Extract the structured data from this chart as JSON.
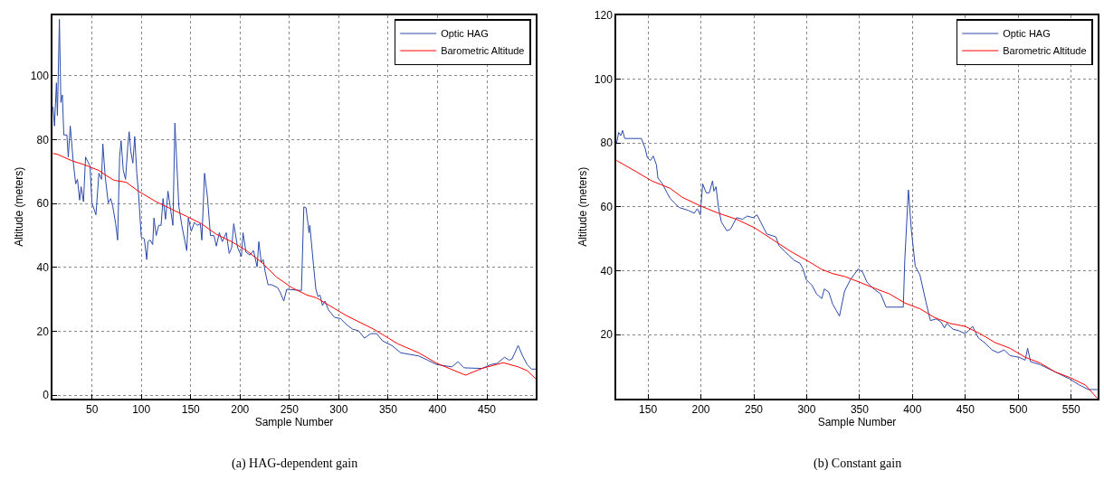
{
  "chart_data": [
    {
      "type": "line",
      "title": "(a) HAG-dependent gain",
      "xlabel": "Sample Number",
      "ylabel": "Altitude (meters)",
      "xlim": [
        10,
        499.5
      ],
      "xticks": [
        50,
        100,
        150,
        200,
        250,
        300,
        350,
        400,
        450
      ],
      "ylim": [
        -1,
        119
      ],
      "yticks": [
        0,
        20,
        40,
        60,
        80,
        100
      ],
      "grid": true,
      "legend": "top right",
      "line_style": "solid",
      "series": [
        {
          "name": "Optic HAG",
          "color": "#2b4aa8",
          "x": [
            10.6,
            12,
            14,
            15,
            17,
            18.5,
            20,
            21.5,
            24.6,
            26,
            28,
            31,
            33.5,
            35.3,
            37.5,
            39,
            41.4,
            43.5,
            45.7,
            48,
            50,
            54,
            57,
            59.7,
            61,
            63.4,
            66.5,
            69,
            71,
            74,
            76,
            78,
            79.5,
            81.7,
            84,
            86.2,
            87.7,
            89.3,
            91.4,
            93.3,
            95.4,
            97,
            100,
            103,
            105.5,
            106.7,
            109,
            111.5,
            112.8,
            115,
            117.6,
            120,
            122,
            124.5,
            127,
            130,
            132,
            134,
            138,
            141,
            146,
            147.6,
            150.6,
            153.7,
            156.7,
            159.8,
            161.3,
            164,
            167,
            170,
            173.6,
            176,
            179,
            182,
            186,
            189,
            191.5,
            193.6,
            197.6,
            201.4,
            203,
            206,
            210,
            213.6,
            217.3,
            219,
            221.5,
            223.5,
            225.4,
            228.4,
            232,
            238,
            240.6,
            244.3,
            247.3,
            262.2,
            264.6,
            266.8,
            269,
            269.8,
            270.7,
            274.4,
            276.8,
            279,
            281,
            283.5,
            286,
            289.6,
            295.7,
            301.8,
            308,
            314,
            320,
            326,
            332.3,
            338.4,
            344.5,
            353.7,
            362.8,
            372,
            381,
            390,
            399.4,
            414.6,
            420.7,
            426.8,
            445,
            454,
            460.4,
            468,
            472.6,
            475.6,
            481.7,
            486.3,
            490.9,
            495.4,
            499.4
          ],
          "values": [
            90.3,
            84.3,
            97.8,
            87.6,
            117.7,
            91.7,
            94,
            81.5,
            81.5,
            74.6,
            84.3,
            73.2,
            66.2,
            67.6,
            61.1,
            65.3,
            60.6,
            74.6,
            73.2,
            71.8,
            60.2,
            56.5,
            69.5,
            67.6,
            78.7,
            68.5,
            60.2,
            61.6,
            59.2,
            53.7,
            48.6,
            74.6,
            79.7,
            70.4,
            67.6,
            77.8,
            82.5,
            76.4,
            72.7,
            81,
            69.5,
            63.9,
            49.5,
            49,
            42.5,
            48.1,
            48.6,
            47.2,
            55.5,
            50,
            53.2,
            53.2,
            61.6,
            55.1,
            63.9,
            57.4,
            53.2,
            85.2,
            59.2,
            53.2,
            45.3,
            55.5,
            51.3,
            54.1,
            53.2,
            53.7,
            48.6,
            69.5,
            62,
            50,
            50,
            46.7,
            50.9,
            48.1,
            50.9,
            44.4,
            46.2,
            53.7,
            46.2,
            43.5,
            50.9,
            44.8,
            43.9,
            45.3,
            40.2,
            48.1,
            41.6,
            42.5,
            38.8,
            34.6,
            34.6,
            33.7,
            32.3,
            29.5,
            33.2,
            32.8,
            59,
            58.7,
            53.2,
            50.9,
            53.2,
            40.7,
            33.2,
            30.9,
            31.4,
            28.1,
            29.5,
            26.7,
            24.4,
            24,
            22.1,
            20.7,
            20.2,
            17.9,
            19.3,
            19.3,
            17,
            15.6,
            13.3,
            12.8,
            12.3,
            11,
            9.6,
            8.9,
            10.5,
            8.6,
            8.4,
            9.6,
            10,
            11.9,
            11,
            11.4,
            15.6,
            12.3,
            9.6,
            8.2,
            8.2
          ]
        },
        {
          "name": "Barometric Altitude",
          "color": "#ff0000",
          "x": [
            10.6,
            14.6,
            29.8,
            42,
            57,
            63.4,
            72.5,
            84.7,
            97,
            115,
            130.4,
            146,
            161,
            176,
            191.4,
            206.6,
            222,
            237,
            252.4,
            267.6,
            277.4,
            308,
            335.4,
            359.8,
            381,
            399.4,
            428.4,
            445,
            466.5,
            481.7,
            490.9,
            499.4
          ],
          "values": [
            75.7,
            75.5,
            73.4,
            72.2,
            70.4,
            69,
            67.3,
            66.7,
            63.9,
            60.6,
            58.3,
            56,
            53.7,
            50.4,
            48.1,
            45.3,
            41.6,
            37,
            33.7,
            31.4,
            30.5,
            24.9,
            20.7,
            16.1,
            13.3,
            10,
            6.3,
            8.4,
            10.2,
            8.9,
            7.7,
            5.2
          ]
        }
      ]
    },
    {
      "type": "line",
      "title": "(b) Constant gain",
      "xlabel": "Sample Number",
      "ylabel": "Altitude (meters)",
      "xlim": [
        120,
        575
      ],
      "xticks": [
        150,
        200,
        250,
        300,
        350,
        400,
        450,
        500,
        550
      ],
      "ylim": [
        0,
        120
      ],
      "yticks": [
        20,
        40,
        60,
        80,
        100,
        120
      ],
      "grid": true,
      "legend": "top right",
      "line_style": "solid",
      "series": [
        {
          "name": "Optic HAG",
          "color": "#2b4aa8",
          "x": [
            120.3,
            122.3,
            124.3,
            126,
            128,
            143.7,
            147.4,
            149.4,
            152.3,
            155,
            158,
            159.4,
            163.7,
            168,
            171,
            175,
            179.4,
            188,
            193.7,
            196.6,
            199.4,
            201.7,
            205,
            208,
            211,
            212.3,
            214.3,
            216.6,
            219.4,
            224.6,
            228,
            232.3,
            233.7,
            239.4,
            243.7,
            249.4,
            253,
            256.6,
            262.3,
            270.9,
            273.7,
            279.4,
            288,
            293.7,
            296.6,
            299.4,
            305,
            309.4,
            314.3,
            316.6,
            320.9,
            324.6,
            331,
            335.8,
            341.5,
            348.6,
            352.8,
            357,
            360,
            364.2,
            370,
            375,
            391.3,
            392.7,
            396.1,
            399,
            402.6,
            407,
            412.6,
            416.9,
            422.6,
            426.8,
            430.2,
            432.5,
            438.2,
            443.9,
            449.6,
            453,
            456.7,
            462.4,
            468.1,
            475.2,
            480.9,
            486.6,
            492.3,
            500.8,
            506.5,
            508.8,
            511.6,
            520.7,
            534.9,
            549.2,
            557.7,
            566.3,
            574.8
          ],
          "values": [
            80,
            83.3,
            82.3,
            83.9,
            81.4,
            81.4,
            78.2,
            75.4,
            74.5,
            75.9,
            73.1,
            69,
            67.2,
            64.4,
            62.6,
            61.2,
            59.8,
            58.9,
            58,
            59.4,
            57.5,
            67.2,
            64.4,
            64.4,
            68.1,
            64.9,
            66.3,
            59.8,
            55.2,
            52.5,
            53,
            55.7,
            56.6,
            56.1,
            57.1,
            56.6,
            57.5,
            55.2,
            51.5,
            50.6,
            47.9,
            46,
            43.3,
            42.3,
            40.5,
            37.3,
            35.4,
            32.7,
            31.3,
            34.3,
            33.3,
            29.5,
            25.8,
            33.6,
            37.3,
            40.5,
            39.6,
            36.4,
            35.4,
            34.1,
            32.7,
            28.6,
            28.6,
            43.3,
            65.3,
            52.5,
            41.4,
            38.7,
            30.4,
            24.4,
            24.9,
            24,
            22.1,
            23.5,
            21.7,
            21.2,
            20.3,
            21.2,
            22.6,
            18.9,
            17.5,
            15.2,
            14.3,
            15.2,
            13.4,
            12.9,
            12,
            15.7,
            11.5,
            10.6,
            8.3,
            6,
            4.2,
            2.8,
            2.8
          ]
        },
        {
          "name": "Barometric Altitude",
          "color": "#ff0000",
          "x": [
            120.3,
            139.4,
            153.7,
            170.9,
            182.3,
            199.4,
            216.6,
            233.7,
            250.9,
            268,
            285.1,
            302.3,
            313.7,
            324.4,
            335.8,
            350,
            364.2,
            378.5,
            392.7,
            407,
            421.1,
            435.4,
            449.6,
            463.8,
            478.1,
            492.3,
            506.5,
            520.7,
            534.9,
            549.2,
            563.4,
            574.8
          ],
          "values": [
            74.5,
            70.9,
            68.1,
            65.8,
            63,
            60.3,
            58,
            56.1,
            53.4,
            49.7,
            46,
            42.8,
            40.5,
            39.1,
            38.2,
            36.4,
            34.5,
            32.7,
            29.9,
            28.1,
            25.3,
            23.5,
            22.6,
            20.3,
            17.5,
            15.7,
            12.9,
            11.1,
            8.3,
            6.5,
            4.2,
            0
          ]
        }
      ]
    }
  ]
}
